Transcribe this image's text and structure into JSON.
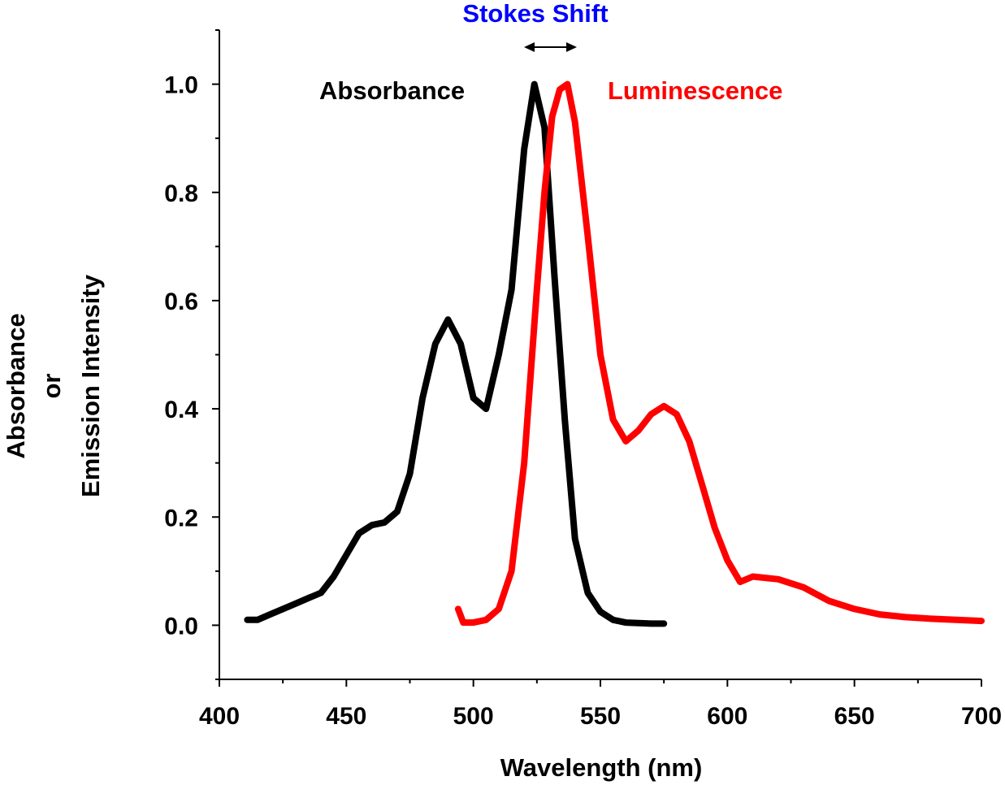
{
  "chart_data": {
    "type": "line",
    "title": "",
    "xlabel": "Wavelength (nm)",
    "ylabel_lines": [
      "Absorbance",
      "or",
      "Emission Intensity"
    ],
    "xlim": [
      400,
      700
    ],
    "ylim": [
      -0.1,
      1.1
    ],
    "xticks": [
      400,
      450,
      500,
      550,
      600,
      650,
      700
    ],
    "xtick_labels": [
      "400",
      "450",
      "500",
      "550",
      "600",
      "650",
      "700"
    ],
    "yticks": [
      0.0,
      0.2,
      0.4,
      0.6,
      0.8,
      1.0
    ],
    "ytick_labels": [
      "0.0",
      "0.2",
      "0.4",
      "0.6",
      "0.8",
      "1.0"
    ],
    "grid": false,
    "annotations": {
      "stokes_shift": "Stokes Shift",
      "absorbance": "Absorbance",
      "luminescence": "Luminescence"
    },
    "colors": {
      "absorbance": "#000000",
      "luminescence": "#ff0000",
      "stokes_shift": "#0000ff"
    },
    "series": [
      {
        "name": "Absorbance",
        "color": "#000000",
        "x": [
          411,
          415,
          420,
          425,
          430,
          435,
          440,
          445,
          450,
          455,
          460,
          465,
          470,
          475,
          480,
          485,
          490,
          495,
          500,
          505,
          510,
          515,
          520,
          524,
          528,
          532,
          536,
          540,
          545,
          550,
          555,
          560,
          565,
          570,
          575
        ],
        "y": [
          0.01,
          0.01,
          0.02,
          0.03,
          0.04,
          0.05,
          0.06,
          0.09,
          0.13,
          0.17,
          0.185,
          0.19,
          0.21,
          0.28,
          0.42,
          0.52,
          0.565,
          0.52,
          0.42,
          0.4,
          0.5,
          0.62,
          0.88,
          1.0,
          0.92,
          0.64,
          0.38,
          0.16,
          0.06,
          0.025,
          0.01,
          0.005,
          0.004,
          0.003,
          0.003
        ]
      },
      {
        "name": "Luminescence",
        "color": "#ff0000",
        "x": [
          494,
          496,
          500,
          505,
          510,
          515,
          520,
          525,
          528,
          531,
          534,
          537,
          540,
          545,
          550,
          555,
          560,
          565,
          570,
          575,
          580,
          585,
          590,
          595,
          600,
          605,
          610,
          620,
          630,
          640,
          650,
          660,
          670,
          680,
          690,
          700
        ],
        "y": [
          0.03,
          0.005,
          0.005,
          0.01,
          0.03,
          0.1,
          0.3,
          0.62,
          0.8,
          0.94,
          0.99,
          1.0,
          0.93,
          0.72,
          0.5,
          0.38,
          0.34,
          0.36,
          0.39,
          0.405,
          0.39,
          0.34,
          0.26,
          0.18,
          0.12,
          0.08,
          0.09,
          0.085,
          0.07,
          0.045,
          0.03,
          0.02,
          0.015,
          0.012,
          0.01,
          0.008
        ]
      }
    ]
  }
}
